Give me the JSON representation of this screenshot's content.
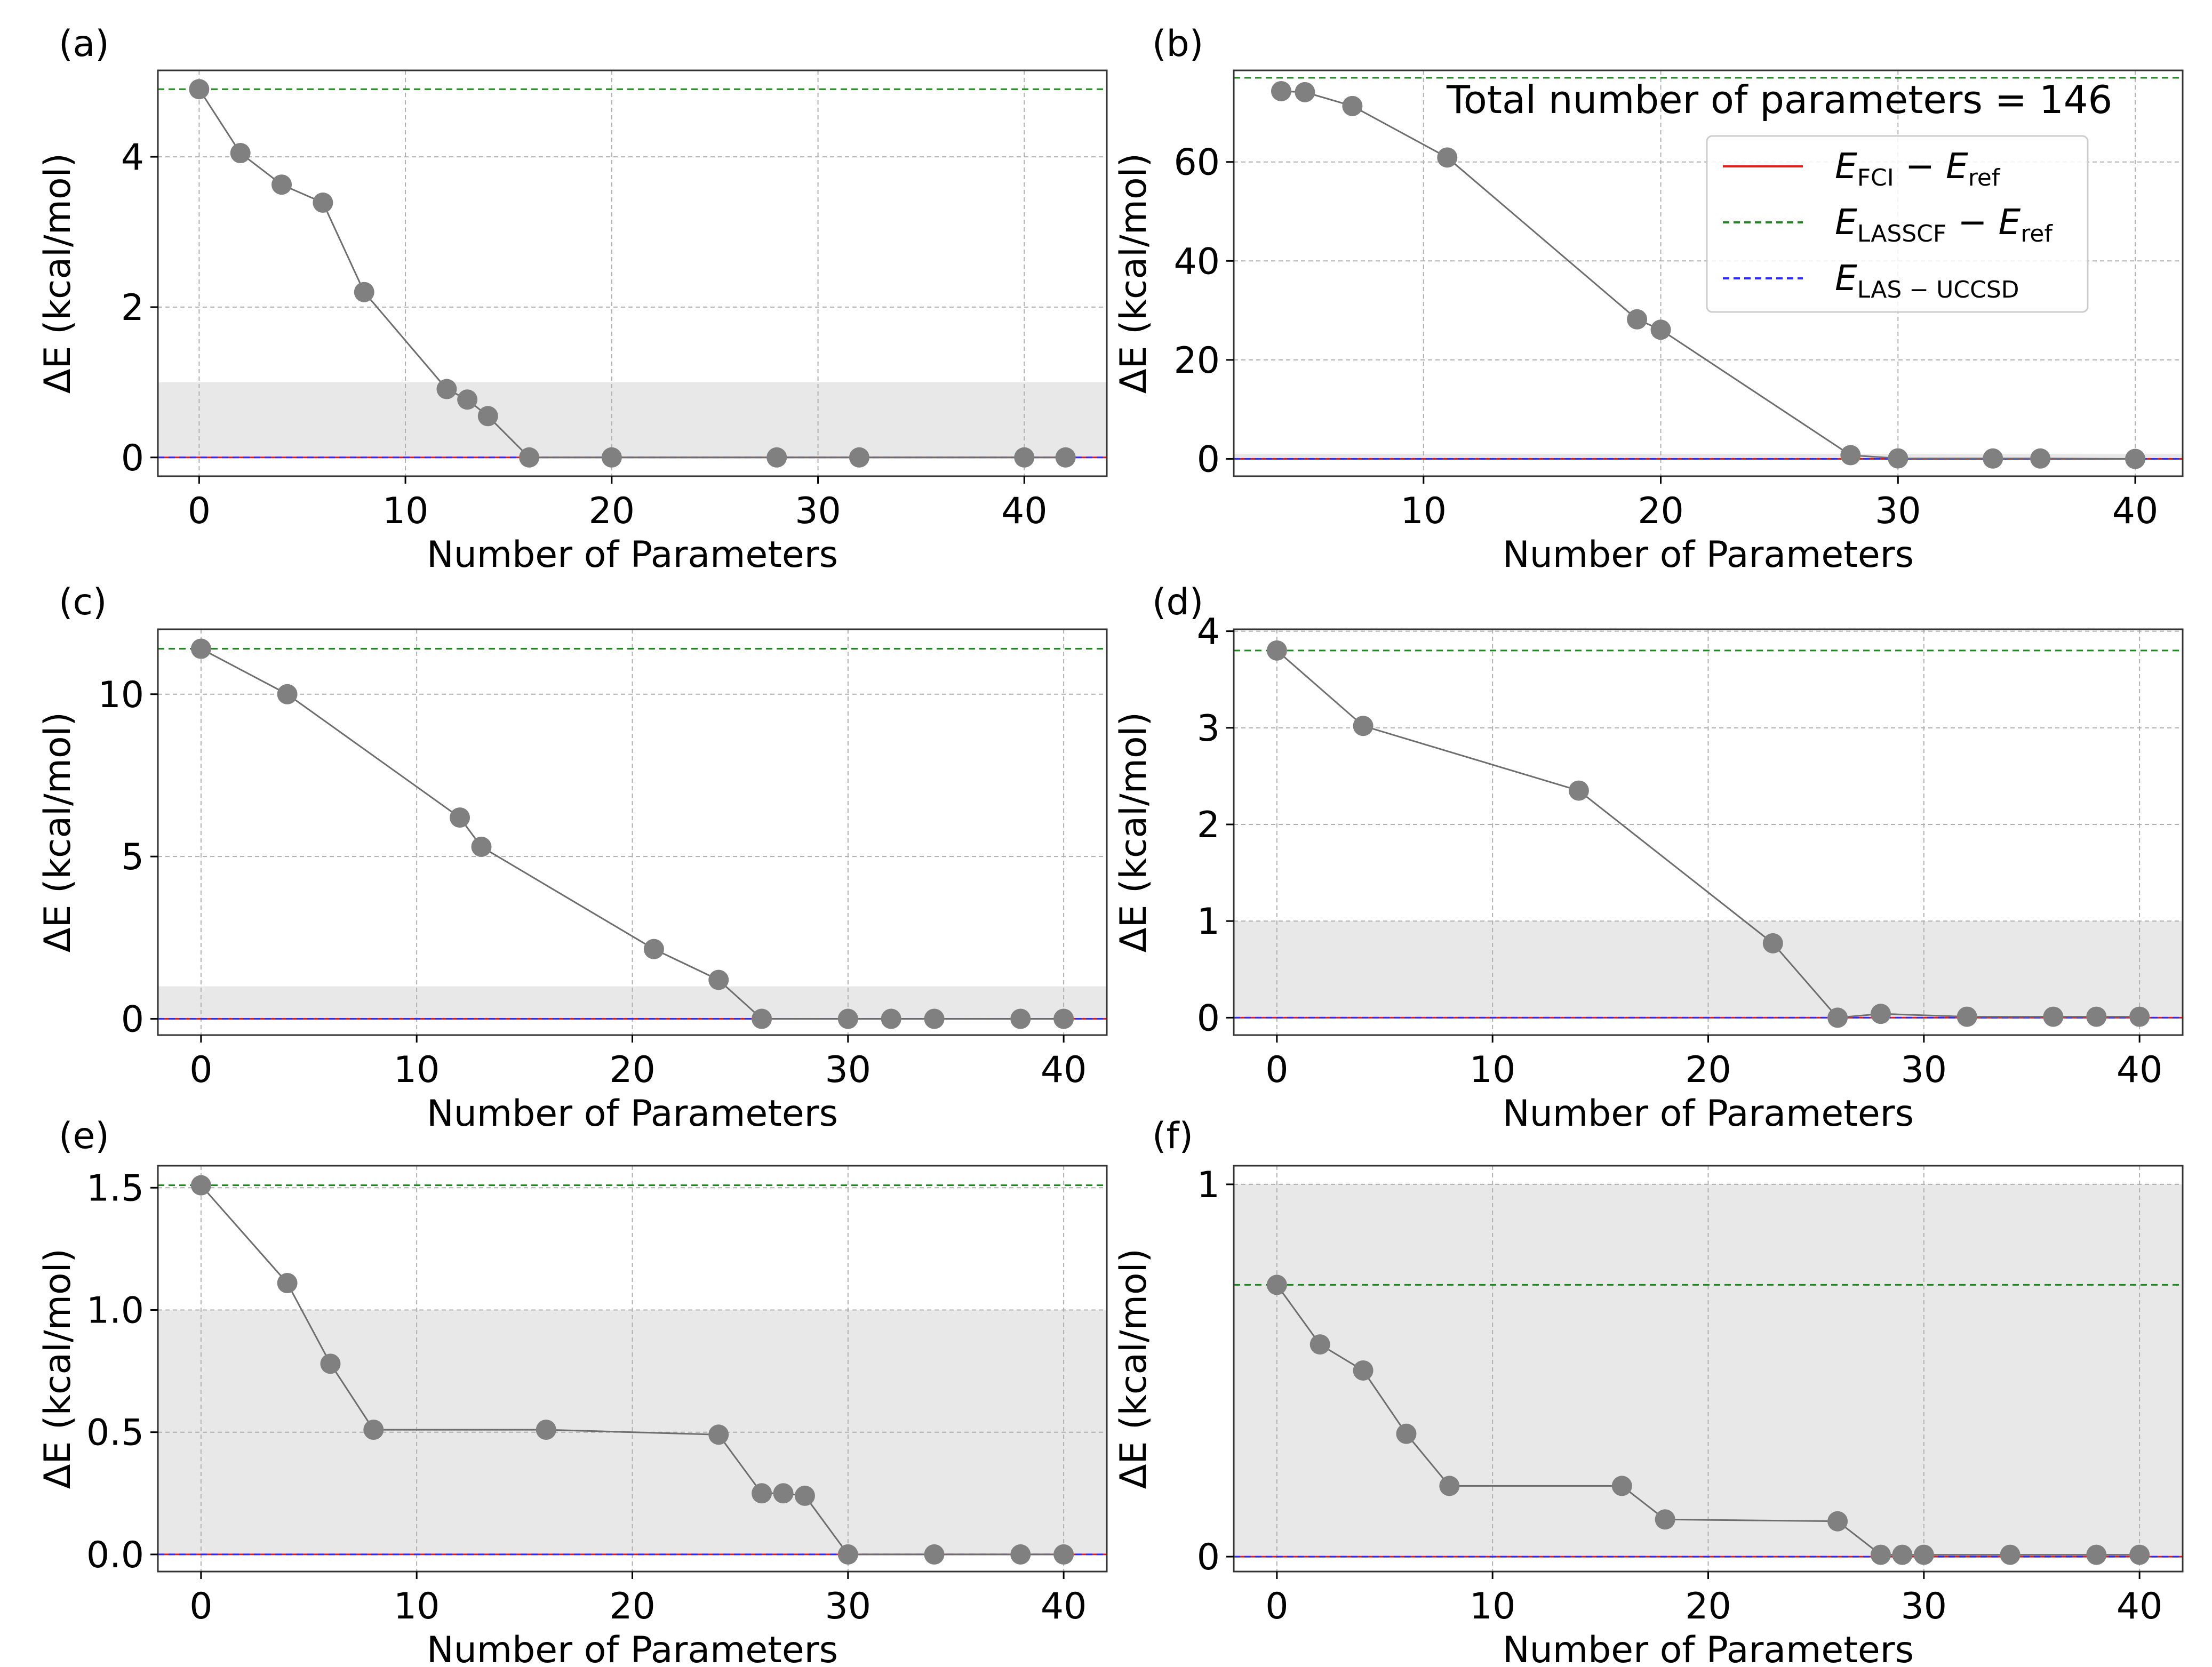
{
  "figure": {
    "legend": {
      "total_params_text": "Total number of parameters = 146",
      "entries": [
        {
          "label_main": "E",
          "label_sub": "FCI",
          "label_tail": " − E",
          "label_tail_sub": "ref",
          "style": "solid",
          "color": "#e41a1c"
        },
        {
          "label_main": "E",
          "label_sub": "LASSCF",
          "label_tail": " − E",
          "label_tail_sub": "ref",
          "style": "dashed",
          "color": "#1a8a1a"
        },
        {
          "label_main": "E",
          "label_sub": "LAS − UCCSD",
          "label_tail": "",
          "label_tail_sub": "",
          "style": "dashed",
          "color": "#2b2bff"
        }
      ]
    },
    "colors": {
      "marker": "#808080",
      "line": "#6e6e6e",
      "band": "#e8e8e8",
      "lasscf": "#1a8a1a",
      "uccsd": "#2b2bff",
      "fci": "#e41a1c",
      "grid": "#b0b0b0"
    }
  },
  "chart_data": [
    {
      "panel": "(a)",
      "type": "line",
      "xlabel": "Number of Parameters",
      "ylabel": "ΔE (kcal/mol)",
      "xlim": [
        -2,
        44
      ],
      "ylim": [
        -0.25,
        5.15
      ],
      "xticks": [
        0,
        10,
        20,
        30,
        40
      ],
      "yticks": [
        0,
        2,
        4
      ],
      "ytick_labels": [
        "0",
        "2",
        "4"
      ],
      "band": [
        0,
        1
      ],
      "lasscf": 4.9,
      "fci": 0,
      "x": [
        0,
        2,
        4,
        6,
        8,
        12,
        13,
        14,
        16,
        20,
        28,
        32,
        40,
        42
      ],
      "y": [
        4.9,
        4.05,
        3.63,
        3.39,
        2.2,
        0.91,
        0.77,
        0.55,
        0.0,
        0.0,
        0.0,
        0.0,
        0.0,
        0.0
      ]
    },
    {
      "panel": "(b)",
      "type": "line",
      "xlabel": "Number of Parameters",
      "ylabel": "ΔE (kcal/mol)",
      "xlim": [
        2,
        42
      ],
      "ylim": [
        -3.5,
        78.5
      ],
      "xticks": [
        10,
        20,
        30,
        40
      ],
      "yticks": [
        0,
        20,
        40,
        60
      ],
      "ytick_labels": [
        "0",
        "20",
        "40",
        "60"
      ],
      "band": [
        0,
        1
      ],
      "lasscf": 77,
      "fci": 0,
      "x": [
        4,
        5,
        7,
        11,
        19,
        20,
        28,
        30,
        34,
        36,
        40
      ],
      "y": [
        74.3,
        74.1,
        71.3,
        60.9,
        28.2,
        26.1,
        0.75,
        0.1,
        0.08,
        0.08,
        0.0
      ]
    },
    {
      "panel": "(c)",
      "type": "line",
      "xlabel": "Number of Parameters",
      "ylabel": "ΔE (kcal/mol)",
      "xlim": [
        -2,
        42
      ],
      "ylim": [
        -0.5,
        12.0
      ],
      "xticks": [
        0,
        10,
        20,
        30,
        40
      ],
      "yticks": [
        0,
        5,
        10
      ],
      "ytick_labels": [
        "0",
        "5",
        "10"
      ],
      "band": [
        0,
        1
      ],
      "lasscf": 11.4,
      "fci": 0,
      "x": [
        0,
        4,
        12,
        13,
        21,
        24,
        26,
        30,
        32,
        34,
        38,
        40
      ],
      "y": [
        11.4,
        10.0,
        6.2,
        5.3,
        2.15,
        1.2,
        0.0,
        0.0,
        0.0,
        0.0,
        0.0,
        0.0
      ]
    },
    {
      "panel": "(d)",
      "type": "line",
      "xlabel": "Number of Parameters",
      "ylabel": "ΔE (kcal/mol)",
      "xlim": [
        -2,
        42
      ],
      "ylim": [
        -0.18,
        4.02
      ],
      "xticks": [
        0,
        10,
        20,
        30,
        40
      ],
      "yticks": [
        0,
        1,
        2,
        3,
        4
      ],
      "ytick_labels": [
        "0",
        "1",
        "2",
        "3",
        "4"
      ],
      "band": [
        0,
        1
      ],
      "lasscf": 3.8,
      "fci": 0,
      "x": [
        0,
        4,
        14,
        23,
        26,
        28,
        32,
        36,
        38,
        40
      ],
      "y": [
        3.8,
        3.02,
        2.35,
        0.77,
        0.0,
        0.04,
        0.01,
        0.01,
        0.01,
        0.01
      ]
    },
    {
      "panel": "(e)",
      "type": "line",
      "xlabel": "Number of Parameters",
      "ylabel": "ΔE (kcal/mol)",
      "xlim": [
        -2,
        42
      ],
      "ylim": [
        -0.07,
        1.59
      ],
      "xticks": [
        0,
        10,
        20,
        30,
        40
      ],
      "yticks": [
        0,
        0.5,
        1.0,
        1.5
      ],
      "ytick_labels": [
        "0.0",
        "0.5",
        "1.0",
        "1.5"
      ],
      "band": [
        0,
        1
      ],
      "lasscf": 1.51,
      "fci": 0,
      "x": [
        0,
        4,
        6,
        8,
        16,
        24,
        26,
        27,
        28,
        30,
        34,
        38,
        40
      ],
      "y": [
        1.51,
        1.11,
        0.78,
        0.51,
        0.51,
        0.49,
        0.25,
        0.25,
        0.24,
        0.0,
        0.0,
        0.0,
        0.0
      ]
    },
    {
      "panel": "(f)",
      "type": "line",
      "xlabel": "Number of Parameters",
      "ylabel": "ΔE (kcal/mol)",
      "xlim": [
        -2,
        42
      ],
      "ylim": [
        -0.04,
        1.05
      ],
      "xticks": [
        0,
        10,
        20,
        30,
        40
      ],
      "yticks": [
        0,
        1
      ],
      "ytick_labels": [
        "0",
        "1"
      ],
      "band": [
        0,
        1
      ],
      "lasscf": 0.73,
      "fci": 0,
      "x": [
        0,
        2,
        4,
        6,
        8,
        16,
        18,
        26,
        28,
        29,
        30,
        34,
        38,
        40
      ],
      "y": [
        0.73,
        0.57,
        0.5,
        0.33,
        0.19,
        0.19,
        0.1,
        0.095,
        0.005,
        0.005,
        0.005,
        0.005,
        0.005,
        0.005
      ]
    }
  ]
}
